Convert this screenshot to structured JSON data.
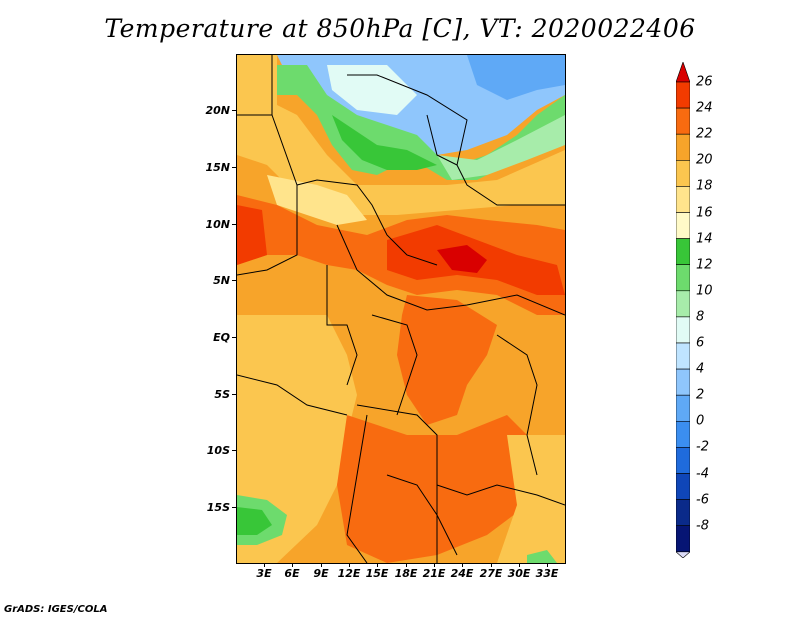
{
  "title": "Temperature at 850hPa [C], VT: 2020022406",
  "credit": "GrADS: IGES/COLA",
  "y_axis_labels": [
    "20N",
    "15N",
    "10N",
    "5N",
    "EQ",
    "5S",
    "10S",
    "15S"
  ],
  "x_axis_labels": [
    "3E",
    "6E",
    "9E",
    "12E",
    "15E",
    "18E",
    "21E",
    "24E",
    "27E",
    "30E",
    "33E"
  ],
  "colorbar": {
    "labels": [
      "26",
      "24",
      "22",
      "20",
      "18",
      "16",
      "14",
      "12",
      "10",
      "8",
      "6",
      "4",
      "2",
      "0",
      "-2",
      "-4",
      "-6",
      "-8"
    ],
    "colors": [
      "#d90000",
      "#f23b00",
      "#f86b10",
      "#f7a42a",
      "#fbc64f",
      "#ffe48c",
      "#fffac8",
      "#38c638",
      "#6ddb6d",
      "#a7ecaa",
      "#e1fbf5",
      "#bfe4ff",
      "#8fc6fc",
      "#5fa9f6",
      "#3b8ef0",
      "#1f6bdc",
      "#0f46b8",
      "#0a2a8a",
      "#061574"
    ],
    "under_color": "#dcdcf8"
  }
}
